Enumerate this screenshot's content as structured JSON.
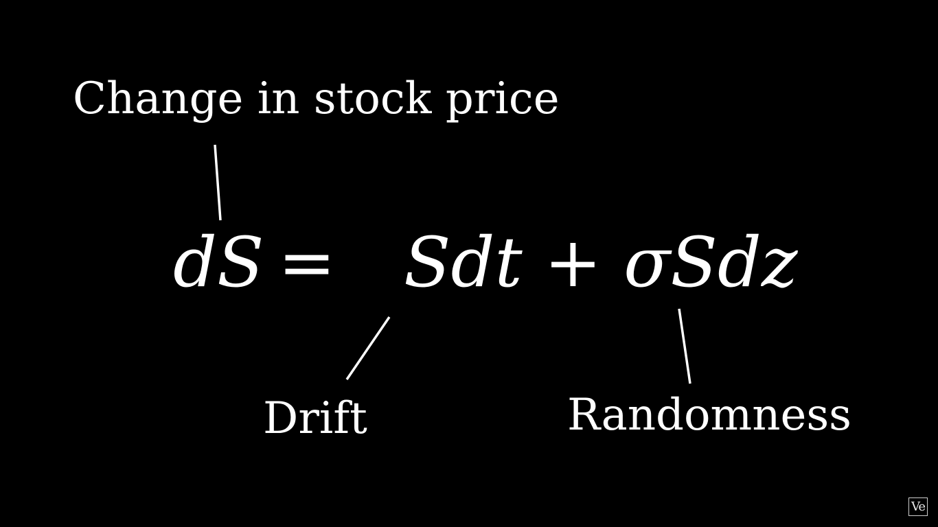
{
  "diagram": {
    "top_label": "Change in stock price",
    "equation": {
      "lhs": "dS",
      "equals": "=",
      "rhs": "Sdt + σSdz"
    },
    "drift_label": "Drift",
    "randomness_label": "Randomness"
  },
  "watermark": {
    "text": "Ve"
  },
  "colors": {
    "background": "#000000",
    "foreground": "#ffffff"
  }
}
